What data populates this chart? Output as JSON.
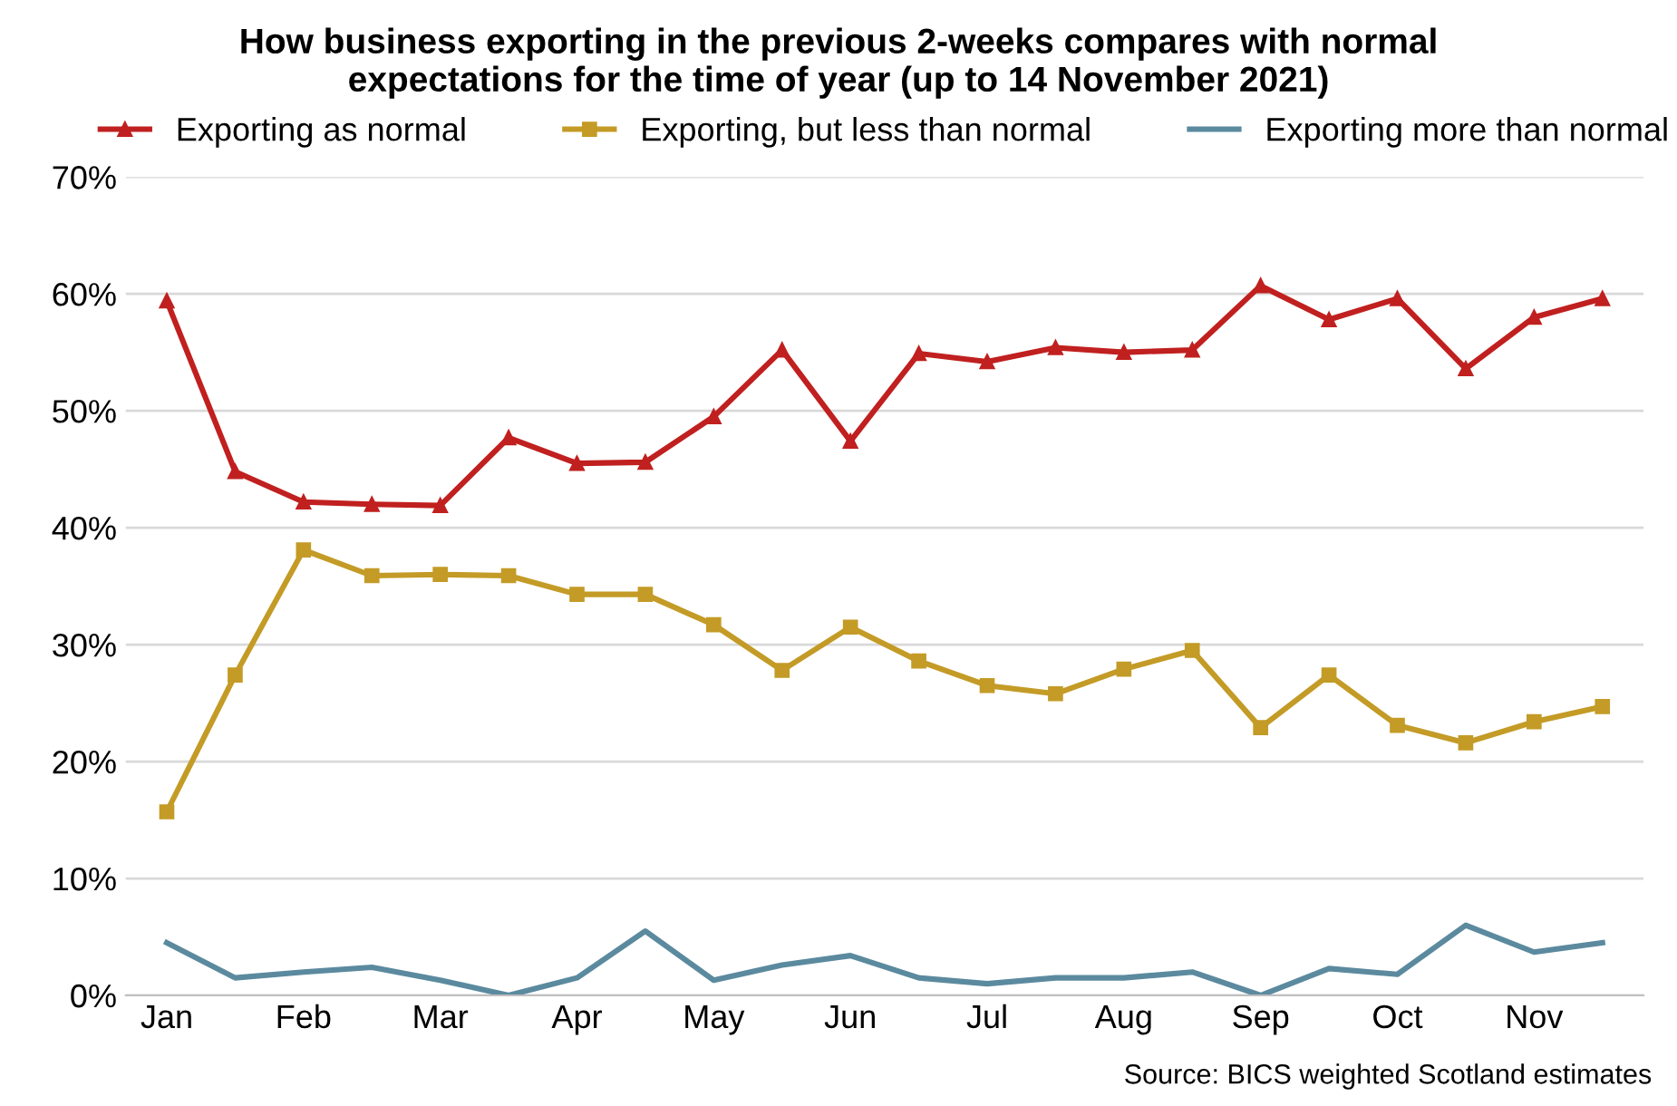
{
  "chart_data": {
    "type": "line",
    "title": "How business exporting in the previous 2-weeks compares with normal\nexpectations for the time of year (up to 14 November 2021)",
    "categories": [
      "Jan",
      null,
      "Feb",
      null,
      "Mar",
      null,
      "Apr",
      null,
      "May",
      null,
      "Jun",
      null,
      "Jul",
      null,
      "Aug",
      null,
      "Sep",
      null,
      "Oct",
      null,
      "Nov",
      null
    ],
    "series": [
      {
        "name": "Exporting as normal",
        "color": "#c0201f",
        "marker": "triangle",
        "values": [
          59.4,
          44.8,
          42.2,
          42.0,
          41.9,
          47.7,
          45.5,
          45.6,
          49.5,
          55.2,
          47.4,
          54.9,
          54.2,
          55.4,
          55.0,
          55.2,
          60.7,
          57.8,
          59.6,
          53.6,
          58.0,
          59.6
        ]
      },
      {
        "name": "Exporting, but less than normal",
        "color": "#c39b26",
        "marker": "square",
        "values": [
          15.7,
          27.4,
          38.1,
          35.9,
          36.0,
          35.9,
          34.3,
          34.3,
          31.7,
          27.8,
          31.5,
          28.6,
          26.5,
          25.8,
          27.9,
          29.5,
          22.9,
          27.4,
          23.1,
          21.6,
          23.4,
          24.7
        ]
      },
      {
        "name": "Exporting more than normal",
        "color": "#5b8a9f",
        "marker": "none",
        "values": [
          4.5,
          1.5,
          2.0,
          2.4,
          1.3,
          0,
          1.5,
          5.5,
          1.3,
          2.6,
          3.4,
          1.5,
          1.0,
          1.5,
          1.5,
          2.0,
          0,
          2.3,
          1.8,
          6.0,
          3.7,
          4.5
        ]
      }
    ],
    "ylim": [
      0,
      70
    ],
    "yticks": [
      {
        "value": 0,
        "label": "0%"
      },
      {
        "value": 10,
        "label": "10%"
      },
      {
        "value": 20,
        "label": "20%"
      },
      {
        "value": 30,
        "label": "30%"
      },
      {
        "value": 40,
        "label": "40%"
      },
      {
        "value": 50,
        "label": "50%"
      },
      {
        "value": 60,
        "label": "60%"
      },
      {
        "value": 70,
        "label": "70%"
      }
    ],
    "grid": "y",
    "legend": "top",
    "line_style": "solid",
    "annotations": [
      "Source: BICS weighted Scotland estimates"
    ]
  }
}
